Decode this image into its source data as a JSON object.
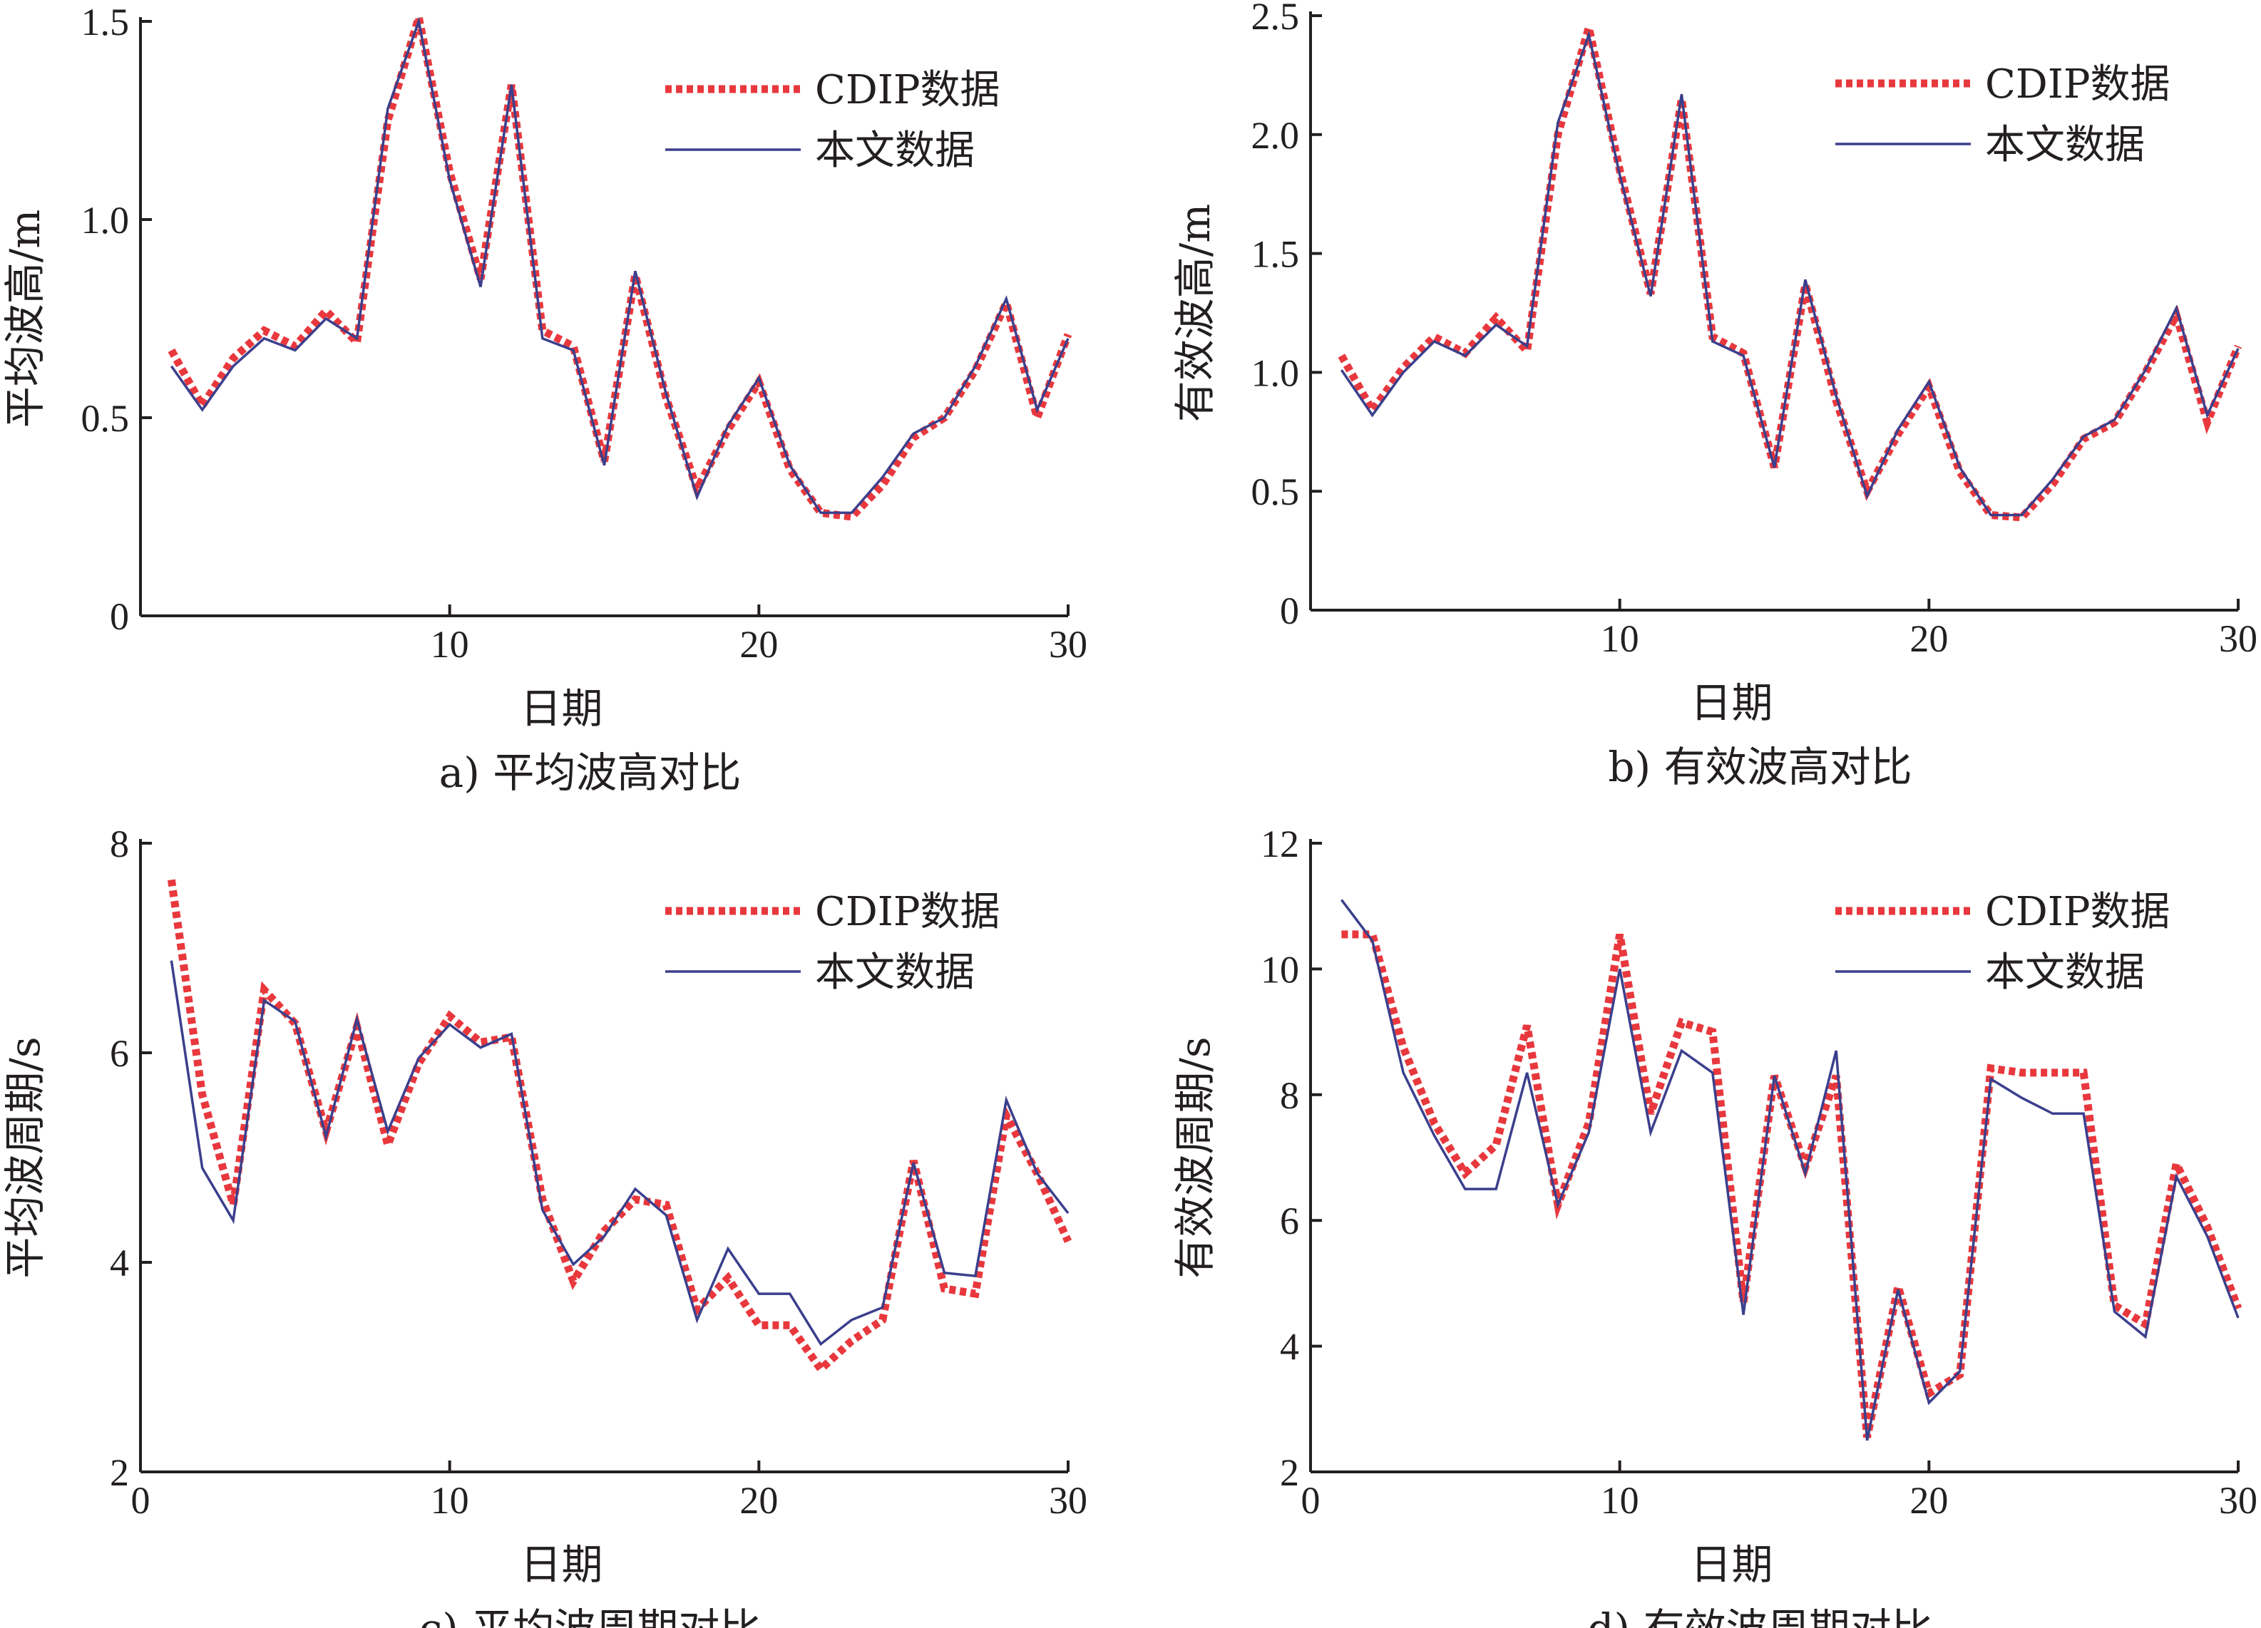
{
  "colors": {
    "cdip": "#e8383d",
    "ours": "#3b3f8c",
    "axis": "#231f20"
  },
  "legend": {
    "cdip": "CDIP数据",
    "ours": "本文数据"
  },
  "chart_data": [
    {
      "id": "a",
      "type": "line",
      "caption": "a) 平均波高对比",
      "xlabel": "日期",
      "ylabel": "平均波高/m",
      "xlim": [
        0,
        30
      ],
      "ylim": [
        0,
        1.5
      ],
      "xticks": [
        "10",
        "20",
        "30"
      ],
      "yticks": [
        "0",
        "0.5",
        "1.0",
        "1.5"
      ],
      "legend_position": "top-right",
      "x": [
        1,
        2,
        3,
        4,
        5,
        6,
        7,
        8,
        9,
        10,
        11,
        12,
        13,
        14,
        15,
        16,
        17,
        18,
        19,
        20,
        21,
        22,
        23,
        24,
        25,
        26,
        27,
        28,
        29,
        30
      ],
      "series": [
        {
          "name": "CDIP数据",
          "values": [
            0.67,
            0.53,
            0.65,
            0.72,
            0.68,
            0.77,
            0.69,
            1.25,
            1.51,
            1.12,
            0.85,
            1.34,
            0.72,
            0.68,
            0.39,
            0.86,
            0.55,
            0.32,
            0.47,
            0.59,
            0.37,
            0.26,
            0.25,
            0.33,
            0.45,
            0.5,
            0.62,
            0.79,
            0.5,
            0.71
          ]
        },
        {
          "name": "本文数据",
          "values": [
            0.63,
            0.52,
            0.63,
            0.7,
            0.67,
            0.75,
            0.7,
            1.28,
            1.5,
            1.1,
            0.83,
            1.34,
            0.7,
            0.67,
            0.38,
            0.87,
            0.56,
            0.3,
            0.48,
            0.6,
            0.38,
            0.26,
            0.26,
            0.35,
            0.46,
            0.5,
            0.63,
            0.8,
            0.52,
            0.7
          ]
        }
      ]
    },
    {
      "id": "b",
      "type": "line",
      "caption": "b) 有效波高对比",
      "xlabel": "日期",
      "ylabel": "有效波高/m",
      "xlim": [
        0,
        30
      ],
      "ylim": [
        0,
        2.5
      ],
      "xticks": [
        "10",
        "20",
        "30"
      ],
      "yticks": [
        "0",
        "0.5",
        "1.0",
        "1.5",
        "2.0",
        "2.5"
      ],
      "legend_position": "top-right",
      "x": [
        1,
        2,
        3,
        4,
        5,
        6,
        7,
        8,
        9,
        10,
        11,
        12,
        13,
        14,
        15,
        16,
        17,
        18,
        19,
        20,
        21,
        22,
        23,
        24,
        25,
        26,
        27,
        28,
        29,
        30
      ],
      "series": [
        {
          "name": "CDIP数据",
          "values": [
            1.07,
            0.84,
            1.02,
            1.15,
            1.08,
            1.23,
            1.09,
            2.0,
            2.45,
            1.85,
            1.33,
            2.15,
            1.15,
            1.08,
            0.6,
            1.37,
            0.88,
            0.5,
            0.74,
            0.94,
            0.58,
            0.4,
            0.39,
            0.53,
            0.72,
            0.79,
            1.0,
            1.24,
            0.79,
            1.11
          ]
        },
        {
          "name": "本文数据",
          "values": [
            1.01,
            0.82,
            1.0,
            1.13,
            1.07,
            1.2,
            1.11,
            2.05,
            2.42,
            1.83,
            1.32,
            2.17,
            1.13,
            1.07,
            0.6,
            1.39,
            0.9,
            0.48,
            0.76,
            0.96,
            0.6,
            0.4,
            0.4,
            0.55,
            0.73,
            0.8,
            1.01,
            1.27,
            0.82,
            1.1
          ]
        }
      ]
    },
    {
      "id": "c",
      "type": "line",
      "caption": "c) 平均波周期对比",
      "xlabel": "日期",
      "ylabel": "平均波周期/s",
      "xlim": [
        0,
        30
      ],
      "ylim": [
        2,
        8
      ],
      "xticks": [
        "0",
        "10",
        "20",
        "30"
      ],
      "yticks": [
        "2",
        "4",
        "6",
        "8"
      ],
      "legend_position": "top-right",
      "x": [
        1,
        2,
        3,
        4,
        5,
        6,
        7,
        8,
        9,
        10,
        11,
        12,
        13,
        14,
        15,
        16,
        17,
        18,
        19,
        20,
        21,
        22,
        23,
        24,
        25,
        26,
        27,
        28,
        29,
        30
      ],
      "series": [
        {
          "name": "CDIP数据",
          "values": [
            7.65,
            5.6,
            4.55,
            6.6,
            6.28,
            5.25,
            6.25,
            5.12,
            5.9,
            6.35,
            6.1,
            6.15,
            4.6,
            3.82,
            4.3,
            4.6,
            4.55,
            3.55,
            3.85,
            3.4,
            3.4,
            2.98,
            3.25,
            3.45,
            4.97,
            3.75,
            3.7,
            5.4,
            4.85,
            4.2
          ]
        },
        {
          "name": "本文数据",
          "values": [
            6.88,
            4.9,
            4.4,
            6.5,
            6.3,
            5.2,
            6.32,
            5.25,
            5.95,
            6.27,
            6.05,
            6.18,
            4.5,
            3.98,
            4.25,
            4.7,
            4.45,
            3.45,
            4.13,
            3.7,
            3.7,
            3.22,
            3.45,
            3.57,
            4.95,
            3.9,
            3.87,
            5.55,
            4.85,
            4.47
          ]
        }
      ]
    },
    {
      "id": "d",
      "type": "line",
      "caption": "d) 有效波周期对比",
      "xlabel": "日期",
      "ylabel": "有效波周期/s",
      "xlim": [
        0,
        30
      ],
      "ylim": [
        2,
        12
      ],
      "xticks": [
        "0",
        "10",
        "20",
        "30"
      ],
      "yticks": [
        "2",
        "4",
        "6",
        "8",
        "10",
        "12"
      ],
      "legend_position": "top-right",
      "x": [
        1,
        2,
        3,
        4,
        5,
        6,
        7,
        8,
        9,
        10,
        11,
        12,
        13,
        14,
        15,
        16,
        17,
        18,
        19,
        20,
        21,
        22,
        23,
        24,
        25,
        26,
        27,
        28,
        29,
        30
      ],
      "series": [
        {
          "name": "CDIP数据",
          "values": [
            10.55,
            10.55,
            8.75,
            7.55,
            6.75,
            7.2,
            9.1,
            6.25,
            7.55,
            10.55,
            7.7,
            9.15,
            9.0,
            4.7,
            8.3,
            6.85,
            8.3,
            2.55,
            4.95,
            3.25,
            3.55,
            8.42,
            8.35,
            8.35,
            8.35,
            4.65,
            4.35,
            6.9,
            5.9,
            4.6
          ]
        },
        {
          "name": "本文数据",
          "values": [
            11.1,
            10.45,
            8.35,
            7.35,
            6.5,
            6.5,
            8.35,
            6.25,
            7.4,
            10.0,
            7.4,
            8.7,
            8.35,
            4.5,
            8.3,
            6.75,
            8.7,
            2.5,
            4.9,
            3.1,
            3.6,
            8.25,
            7.95,
            7.7,
            7.7,
            4.55,
            4.15,
            6.7,
            5.75,
            4.45
          ]
        }
      ]
    }
  ]
}
